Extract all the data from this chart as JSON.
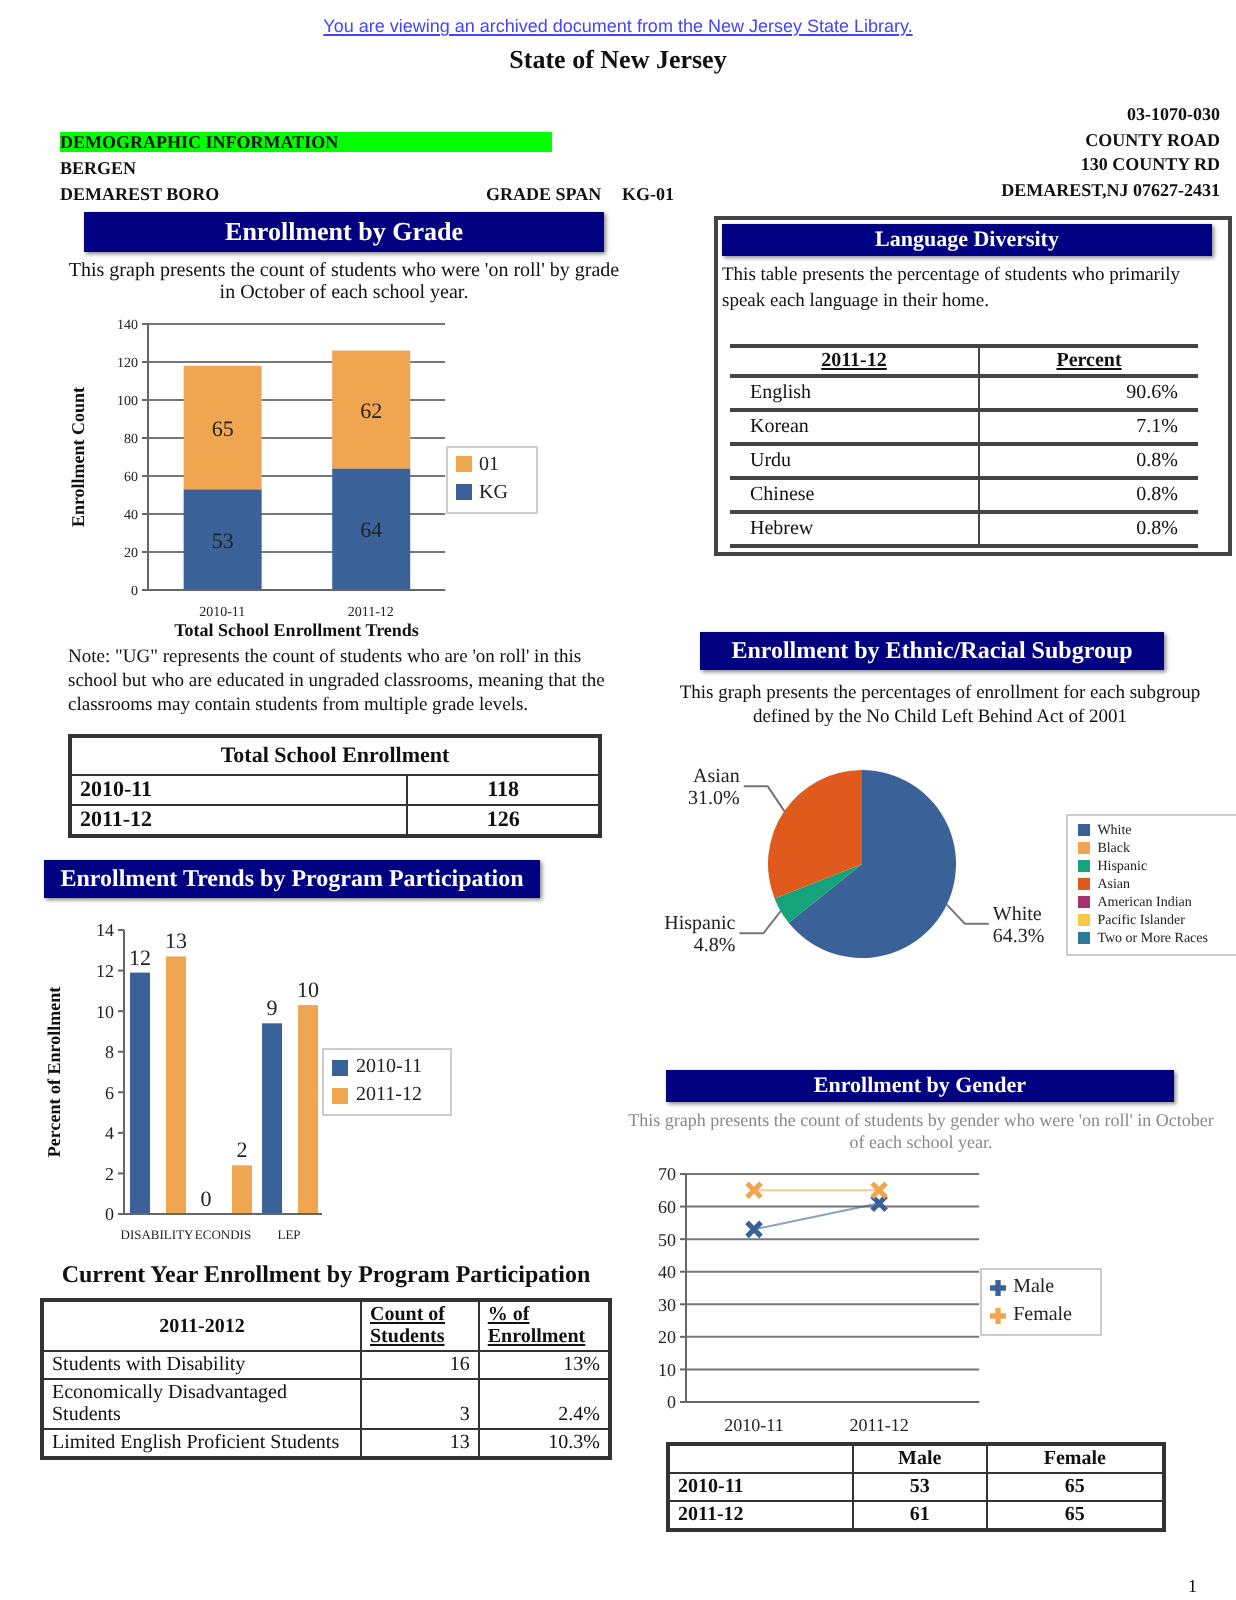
{
  "chart_data": [
    {
      "type": "other",
      "title": "State of New Jersey",
      "subtitle": "You are viewing an archived document from the New Jersey State Library.",
      "annotations": [
        "DEMOGRAPHIC INFORMATION",
        "BERGEN",
        "DEMAREST BORO",
        "GRADE SPAN",
        "KG-01",
        "03-1070-030",
        "COUNTY ROAD",
        "130 COUNTY RD",
        "DEMAREST,NJ 07627-2431",
        "1"
      ]
    },
    {
      "type": "bar",
      "title": "Enrollment by Grade",
      "subtitle": "This graph presents the count of students who were 'on roll' by grade in October of each school year.",
      "categories": [
        "2010-11",
        "2011-12"
      ],
      "series": [
        {
          "name": "KG",
          "color": "#3a6299",
          "values": [
            53,
            64
          ]
        },
        {
          "name": "01",
          "color": "#f0a650",
          "values": [
            65,
            62
          ]
        }
      ],
      "stacked": true,
      "data_labels": true,
      "ylabel": "Enrollment Count",
      "xlabel": "Total School Enrollment Trends",
      "ylim": [
        0,
        140
      ],
      "yticks": [
        0,
        20,
        40,
        60,
        80,
        100,
        120,
        140
      ],
      "grid": "y",
      "legend": "right",
      "annotations": [
        "Note: \"UG\" represents the count of students who are 'on roll' in this school but who are educated in ungraded classrooms, meaning that the classrooms may contain students from multiple grade levels."
      ]
    },
    {
      "type": "other",
      "title": "Total School Enrollment",
      "categories": [
        "2010-11",
        "2011-12"
      ],
      "values": [
        118,
        126
      ],
      "data_labels": true
    },
    {
      "type": "bar",
      "title": "Enrollment Trends by Program Participation",
      "categories": [
        "DISABILITY",
        "ECONDIS",
        "LEP"
      ],
      "series": [
        {
          "name": "2010-11",
          "color": "#3a6299",
          "values": [
            11.9,
            0,
            9.4
          ],
          "value_labels": [
            "12",
            "0",
            "9"
          ]
        },
        {
          "name": "2011-12",
          "color": "#f0a650",
          "values": [
            12.7,
            2.4,
            10.3
          ],
          "value_labels": [
            "13",
            "2",
            "10"
          ]
        }
      ],
      "ylabel": "Percent of Enrollment",
      "ylim": [
        0,
        14
      ],
      "yticks": [
        0,
        2,
        4,
        6,
        8,
        10,
        12,
        14
      ],
      "grid": false,
      "legend": "right"
    },
    {
      "type": "other",
      "title": "Current Year Enrollment by Program Participation",
      "xlabel": "2011-2012",
      "categories": [
        "Students with Disability",
        "Economically Disadvantaged Students",
        "Limited English Proficient Students"
      ],
      "series": [
        {
          "name": "Count of Students",
          "values": [
            16,
            3,
            13
          ]
        },
        {
          "name": "% of Enrollment",
          "values": [
            13,
            2.4,
            10.3
          ],
          "value_labels": [
            "13%",
            "2.4%",
            "10.3%"
          ]
        }
      ],
      "data_labels": true
    },
    {
      "type": "other",
      "title": "Language Diversity",
      "subtitle": "This table presents the percentage of students who primarily speak each language in their home.",
      "xlabel": "2011-12",
      "ylabel": "Percent",
      "categories": [
        "English",
        "Korean",
        "Urdu",
        "Chinese",
        "Hebrew"
      ],
      "values": [
        90.6,
        7.1,
        0.8,
        0.8,
        0.8
      ],
      "value_labels": [
        "90.6%",
        "7.1%",
        "0.8%",
        "0.8%",
        "0.8%"
      ]
    },
    {
      "type": "pie",
      "title": "Enrollment by Ethnic/Racial Subgroup",
      "subtitle": "This graph presents the percentages of enrollment for each subgroup defined by the No Child Left Behind Act of 2001",
      "categories": [
        "White",
        "Black",
        "Hispanic",
        "Asian",
        "American Indian",
        "Pacific Islander",
        "Two or More Races"
      ],
      "values": [
        64.3,
        0,
        4.8,
        31.0,
        0,
        0,
        0
      ],
      "colors": [
        "#3a6299",
        "#f0a650",
        "#14a37a",
        "#e05a1e",
        "#a8326e",
        "#f7c948",
        "#2e7a96"
      ],
      "value_labels": [
        "64.3%",
        null,
        "4.8%",
        "31.0%",
        null,
        null,
        null
      ],
      "legend": "right"
    },
    {
      "type": "line",
      "title": "Enrollment by Gender",
      "subtitle": "This graph presents the count of students by gender who were 'on roll' in October of each school year.",
      "categories": [
        "2010-11",
        "2011-12"
      ],
      "series": [
        {
          "name": "Male",
          "color": "#3a6299",
          "values": [
            53,
            61
          ]
        },
        {
          "name": "Female",
          "color": "#f0a650",
          "values": [
            65,
            65
          ]
        }
      ],
      "marker": "cross",
      "ylim": [
        0,
        70
      ],
      "yticks": [
        0,
        10,
        20,
        30,
        40,
        50,
        60,
        70
      ],
      "grid": "y",
      "legend": "right"
    },
    {
      "type": "other",
      "categories": [
        "2010-11",
        "2011-12"
      ],
      "series": [
        {
          "name": "Male",
          "values": [
            53,
            61
          ]
        },
        {
          "name": "Female",
          "values": [
            65,
            65
          ]
        }
      ],
      "data_labels": true
    }
  ]
}
